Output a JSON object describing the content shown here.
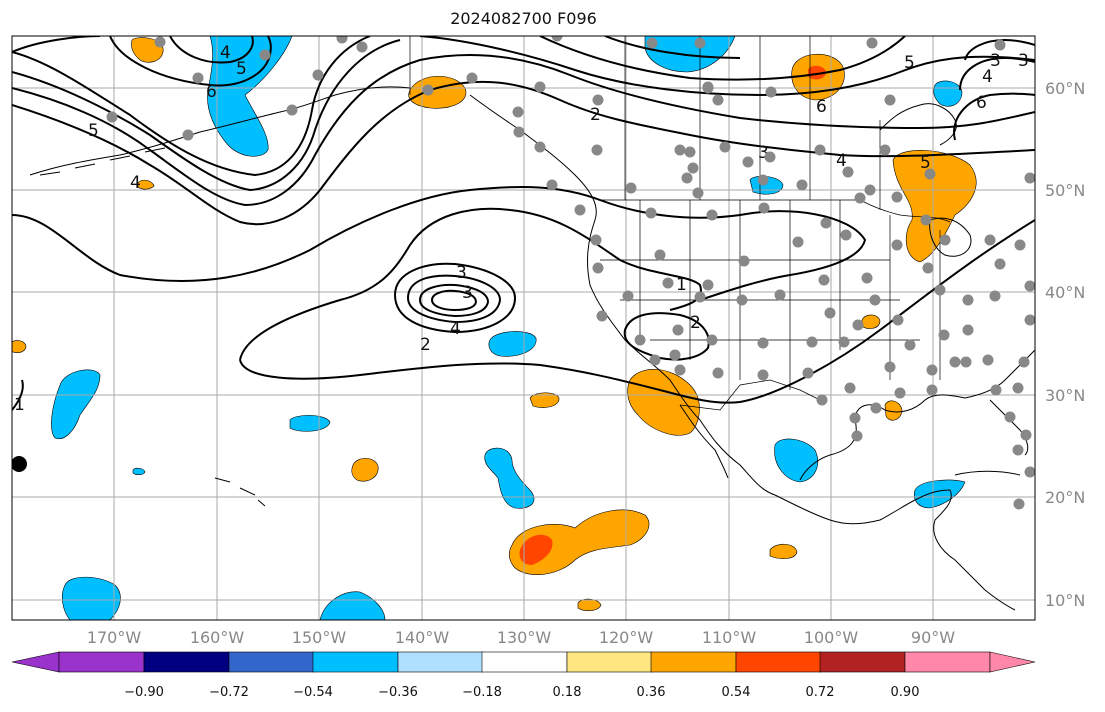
{
  "title": "2024082700 F096",
  "longitude_labels": [
    "170°W",
    "160°W",
    "150°W",
    "140°W",
    "130°W",
    "120°W",
    "110°W",
    "100°W",
    "90°W"
  ],
  "latitude_labels": [
    "60°N",
    "50°N",
    "40°N",
    "30°N",
    "20°N",
    "10°N"
  ],
  "colorbar": {
    "tick_labels": [
      "−0.90",
      "−0.72",
      "−0.54",
      "−0.36",
      "−0.18",
      "0.18",
      "0.36",
      "0.54",
      "0.72",
      "0.90"
    ],
    "colors": [
      "#9933cc",
      "#000080",
      "#3366cc",
      "#00bfff",
      "#b0e0ff",
      "#ffffff",
      "#ffe680",
      "#ffa500",
      "#ff4500",
      "#b22222",
      "#ff88aa"
    ]
  },
  "contour_labels": [
    "5",
    "4",
    "6",
    "5",
    "4",
    "2",
    "3",
    "4",
    "5",
    "6",
    "4",
    "6",
    "3",
    "5",
    "3",
    "3",
    "4",
    "2",
    "1",
    "2",
    "1",
    "3"
  ],
  "colors": {
    "contour": "#000000",
    "station": "#888888",
    "grid": "#aaaaaa",
    "positive_fill": "#ffa500",
    "strong_positive_fill": "#ff4500",
    "negative_fill": "#00bfff"
  }
}
